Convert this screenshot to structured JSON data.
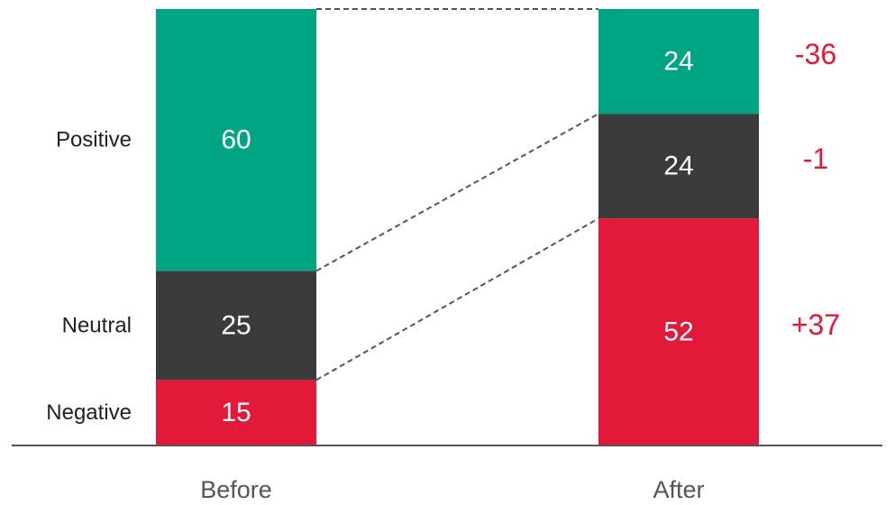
{
  "chart_data": {
    "type": "bar",
    "subtype": "stacked-100",
    "categories": [
      "Before",
      "After"
    ],
    "series": [
      {
        "name": "Negative",
        "values": [
          15,
          52
        ],
        "color": "#e3193a"
      },
      {
        "name": "Neutral",
        "values": [
          25,
          24
        ],
        "color": "#3b3b3b"
      },
      {
        "name": "Positive",
        "values": [
          60,
          24
        ],
        "color": "#00a482"
      }
    ],
    "changes": [
      "+37",
      "-1",
      "-36"
    ],
    "ylim": [
      0,
      100
    ],
    "grid": false,
    "legend": "left"
  }
}
